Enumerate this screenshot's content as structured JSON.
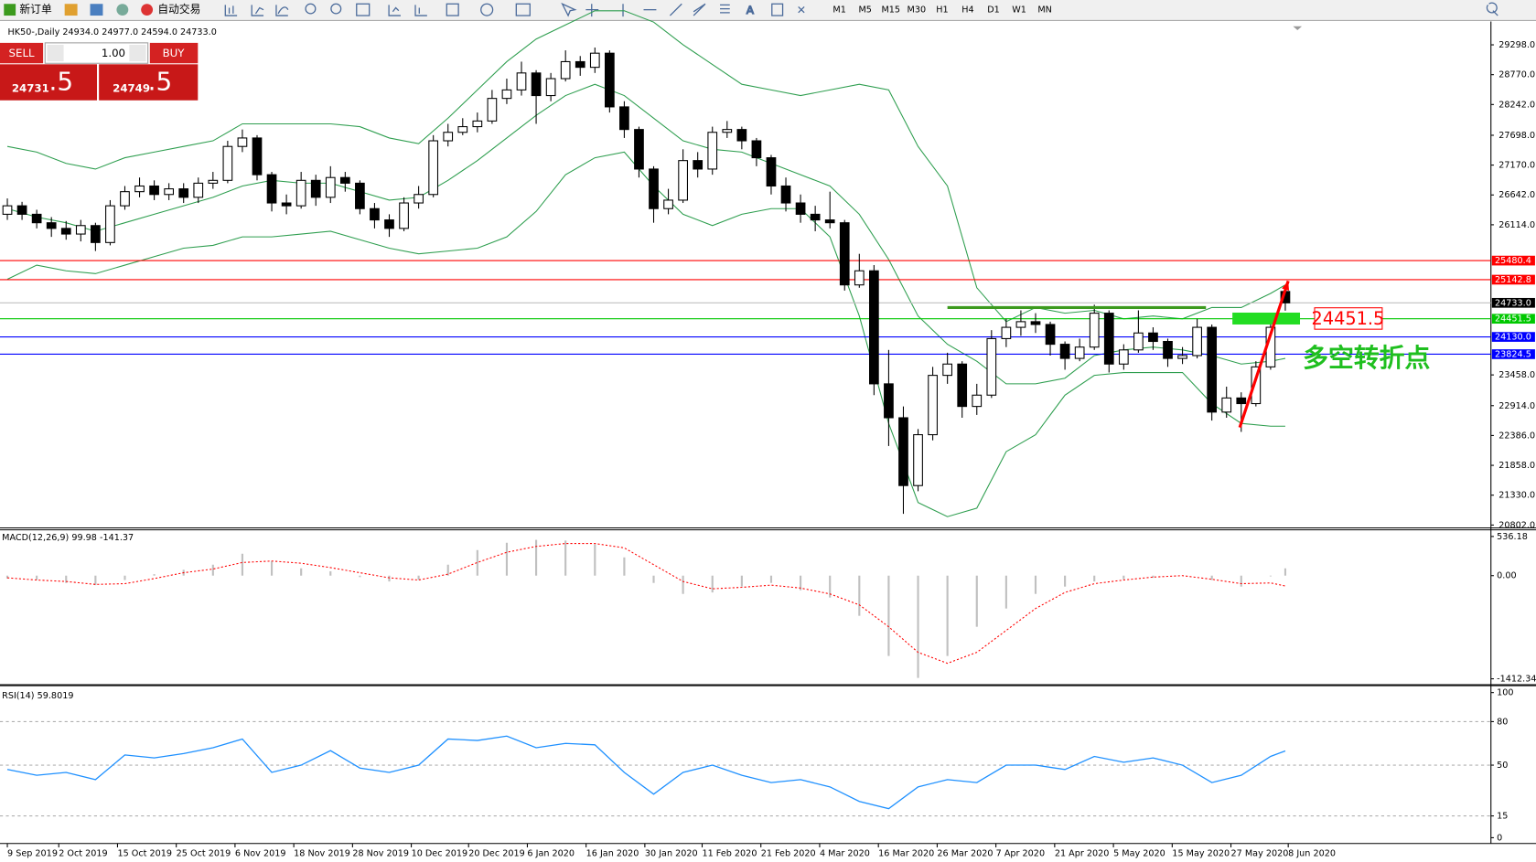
{
  "toolbar": {
    "new_order": "新订单",
    "auto_trade": "自动交易",
    "timeframes": [
      "M1",
      "M5",
      "M15",
      "M30",
      "H1",
      "H4",
      "D1",
      "W1",
      "MN"
    ]
  },
  "trade": {
    "sell": "SELL",
    "buy": "BUY",
    "volume": "1.00",
    "bid_int": "24731",
    "bid_frac": ".5",
    "ask_int": "24749",
    "ask_frac": ".5"
  },
  "chart_data": {
    "type": "candlestick",
    "title": "HK50-,Daily  24934.0 24977.0 24594.0 24733.0",
    "grid": false,
    "xlim": [
      -0.5,
      101
    ],
    "xticks": [
      {
        "value": 0,
        "label": "9 Sep 2019"
      },
      {
        "value": 3.5,
        "label": "2 Oct 2019"
      },
      {
        "value": 7.5,
        "label": "15 Oct 2019"
      },
      {
        "value": 11.5,
        "label": "25 Oct 2019"
      },
      {
        "value": 15.5,
        "label": "6 Nov 2019"
      },
      {
        "value": 19.5,
        "label": "18 Nov 2019"
      },
      {
        "value": 23.5,
        "label": "28 Nov 2019"
      },
      {
        "value": 27.5,
        "label": "10 Dec 2019"
      },
      {
        "value": 31.4,
        "label": "20 Dec 2019"
      },
      {
        "value": 35.4,
        "label": "6 Jan 2020"
      },
      {
        "value": 39.4,
        "label": "16 Jan 2020"
      },
      {
        "value": 43.4,
        "label": "30 Jan 2020"
      },
      {
        "value": 47.3,
        "label": "11 Feb 2020"
      },
      {
        "value": 51.3,
        "label": "21 Feb 2020"
      },
      {
        "value": 55.3,
        "label": "4 Mar 2020"
      },
      {
        "value": 59.3,
        "label": "16 Mar 2020"
      },
      {
        "value": 63.3,
        "label": "26 Mar 2020"
      },
      {
        "value": 67.3,
        "label": "7 Apr 2020"
      },
      {
        "value": 71.3,
        "label": "21 Apr 2020"
      },
      {
        "value": 75.3,
        "label": "5 May 2020"
      },
      {
        "value": 79.3,
        "label": "15 May 2020"
      },
      {
        "value": 83.3,
        "label": "27 May 2020"
      },
      {
        "value": 87.2,
        "label": "8 Jun 2020"
      }
    ],
    "ylim": [
      20768,
      29643
    ],
    "yticks": [
      {
        "value": 20802,
        "label": "20802.0"
      },
      {
        "value": 21330,
        "label": "21330.0"
      },
      {
        "value": 21858,
        "label": "21858.0"
      },
      {
        "value": 22386,
        "label": "22386.0"
      },
      {
        "value": 22914,
        "label": "22914.0"
      },
      {
        "value": 23458,
        "label": "23458.0"
      },
      {
        "value": 26114,
        "label": "26114.0"
      },
      {
        "value": 26642,
        "label": "26642.0"
      },
      {
        "value": 27170,
        "label": "27170.0"
      },
      {
        "value": 27698,
        "label": "27698.0"
      },
      {
        "value": 28242,
        "label": "28242.0"
      },
      {
        "value": 28770,
        "label": "28770.0"
      },
      {
        "value": 29298,
        "label": "29298.0"
      }
    ],
    "up_color": "#ffffff",
    "down_color": "#000000",
    "ohlc": [
      [
        26300,
        26580,
        26200,
        26450
      ],
      [
        26450,
        26520,
        26200,
        26300
      ],
      [
        26300,
        26380,
        26050,
        26150
      ],
      [
        26150,
        26250,
        25900,
        26050
      ],
      [
        26050,
        26180,
        25850,
        25950
      ],
      [
        25950,
        26200,
        25820,
        26100
      ],
      [
        26100,
        26150,
        25650,
        25800
      ],
      [
        25800,
        26550,
        25750,
        26450
      ],
      [
        26450,
        26800,
        26380,
        26700
      ],
      [
        26700,
        26950,
        26600,
        26800
      ],
      [
        26800,
        26900,
        26550,
        26650
      ],
      [
        26650,
        26850,
        26550,
        26750
      ],
      [
        26750,
        26850,
        26500,
        26600
      ],
      [
        26600,
        26950,
        26500,
        26850
      ],
      [
        26850,
        27050,
        26750,
        26900
      ],
      [
        26900,
        27600,
        26850,
        27500
      ],
      [
        27500,
        27800,
        27400,
        27650
      ],
      [
        27650,
        27700,
        26900,
        27000
      ],
      [
        27000,
        27050,
        26350,
        26500
      ],
      [
        26500,
        26650,
        26300,
        26450
      ],
      [
        26450,
        27050,
        26400,
        26900
      ],
      [
        26900,
        27000,
        26450,
        26600
      ],
      [
        26600,
        27150,
        26500,
        26950
      ],
      [
        26950,
        27050,
        26700,
        26850
      ],
      [
        26850,
        26900,
        26300,
        26400
      ],
      [
        26400,
        26500,
        26050,
        26200
      ],
      [
        26200,
        26300,
        25900,
        26050
      ],
      [
        26050,
        26600,
        26000,
        26500
      ],
      [
        26500,
        26800,
        26400,
        26650
      ],
      [
        26650,
        27700,
        26600,
        27600
      ],
      [
        27600,
        27900,
        27500,
        27750
      ],
      [
        27750,
        28000,
        27700,
        27850
      ],
      [
        27850,
        28100,
        27750,
        27950
      ],
      [
        27950,
        28500,
        27900,
        28350
      ],
      [
        28350,
        28700,
        28250,
        28500
      ],
      [
        28500,
        29000,
        28400,
        28800
      ],
      [
        28800,
        28850,
        27900,
        28400
      ],
      [
        28400,
        28800,
        28300,
        28700
      ],
      [
        28700,
        29200,
        28650,
        29000
      ],
      [
        29000,
        29100,
        28750,
        28900
      ],
      [
        28900,
        29250,
        28800,
        29150
      ],
      [
        29150,
        29200,
        28100,
        28200
      ],
      [
        28200,
        28300,
        27650,
        27800
      ],
      [
        27800,
        27850,
        26950,
        27100
      ],
      [
        27100,
        27150,
        26150,
        26400
      ],
      [
        26400,
        26750,
        26300,
        26550
      ],
      [
        26550,
        27450,
        26500,
        27250
      ],
      [
        27250,
        27400,
        26950,
        27100
      ],
      [
        27100,
        27850,
        27000,
        27750
      ],
      [
        27750,
        27950,
        27650,
        27800
      ],
      [
        27800,
        27850,
        27450,
        27600
      ],
      [
        27600,
        27650,
        27150,
        27300
      ],
      [
        27300,
        27350,
        26650,
        26800
      ],
      [
        26800,
        26950,
        26350,
        26500
      ],
      [
        26500,
        26650,
        26150,
        26300
      ],
      [
        26300,
        26450,
        26000,
        26200
      ],
      [
        26200,
        26700,
        26050,
        26150
      ],
      [
        26150,
        26200,
        24950,
        25050
      ],
      [
        25050,
        25600,
        25000,
        25300
      ],
      [
        25300,
        25400,
        23100,
        23300
      ],
      [
        23300,
        23900,
        22200,
        22700
      ],
      [
        22700,
        22900,
        21000,
        21500
      ],
      [
        21500,
        22500,
        21400,
        22400
      ],
      [
        22400,
        23600,
        22300,
        23450
      ],
      [
        23450,
        23850,
        23300,
        23650
      ],
      [
        23650,
        23700,
        22700,
        22900
      ],
      [
        22900,
        23300,
        22750,
        23100
      ],
      [
        23100,
        24250,
        23050,
        24100
      ],
      [
        24100,
        24450,
        23950,
        24300
      ],
      [
        24300,
        24600,
        24150,
        24400
      ],
      [
        24400,
        24550,
        24200,
        24350
      ],
      [
        24350,
        24400,
        23800,
        24000
      ],
      [
        24000,
        24050,
        23550,
        23750
      ],
      [
        23750,
        24100,
        23700,
        23950
      ],
      [
        23950,
        24700,
        23900,
        24550
      ],
      [
        24550,
        24600,
        23500,
        23650
      ],
      [
        23650,
        24000,
        23550,
        23900
      ],
      [
        23900,
        24600,
        23850,
        24200
      ],
      [
        24200,
        24300,
        23900,
        24050
      ],
      [
        24050,
        24100,
        23600,
        23750
      ],
      [
        23750,
        23950,
        23650,
        23800
      ],
      [
        23800,
        24450,
        23750,
        24300
      ],
      [
        24300,
        24350,
        22650,
        22800
      ],
      [
        22800,
        23250,
        22700,
        23050
      ],
      [
        23050,
        23150,
        22450,
        22950
      ],
      [
        22950,
        23700,
        22900,
        23600
      ],
      [
        23600,
        24400,
        23550,
        24300
      ],
      [
        24934,
        24977,
        24594,
        24733
      ]
    ],
    "bands": {
      "color": "#2e9e4f",
      "x": [
        0,
        2,
        4,
        6,
        8,
        10,
        12,
        14,
        16,
        18,
        20,
        22,
        24,
        26,
        28,
        30,
        32,
        34,
        36,
        38,
        40,
        42,
        44,
        46,
        48,
        50,
        52,
        54,
        56,
        58,
        60,
        62,
        64,
        66,
        68,
        70,
        72,
        74,
        76,
        78,
        80,
        82,
        84,
        86,
        87
      ],
      "upper": [
        27500,
        27400,
        27200,
        27100,
        27300,
        27400,
        27500,
        27600,
        27900,
        27900,
        27900,
        27900,
        27850,
        27650,
        27550,
        28000,
        28500,
        29000,
        29400,
        29650,
        29900,
        29900,
        29700,
        29300,
        28950,
        28600,
        28500,
        28400,
        28500,
        28600,
        28500,
        27500,
        26800,
        25000,
        24400,
        24650,
        24550,
        24600,
        24450,
        24500,
        24450,
        24650,
        24650,
        24900,
        25050
      ],
      "middle": [
        26400,
        26250,
        26150,
        26000,
        26150,
        26300,
        26450,
        26600,
        26800,
        26900,
        26850,
        26850,
        26700,
        26550,
        26600,
        26900,
        27250,
        27650,
        28050,
        28400,
        28600,
        28400,
        28000,
        27600,
        27450,
        27400,
        27200,
        27000,
        26800,
        26300,
        25500,
        24500,
        24000,
        23700,
        23300,
        23300,
        23400,
        23800,
        23900,
        23950,
        23900,
        23800,
        23650,
        23700,
        23750
      ],
      "lower": [
        25150,
        25400,
        25300,
        25250,
        25400,
        25550,
        25700,
        25750,
        25900,
        25900,
        25950,
        26000,
        25850,
        25700,
        25600,
        25650,
        25700,
        25900,
        26350,
        27000,
        27300,
        27400,
        26800,
        26300,
        26100,
        26300,
        26400,
        26400,
        25900,
        24500,
        22600,
        21200,
        20950,
        21100,
        22100,
        22400,
        23100,
        23450,
        23500,
        23500,
        23500,
        22950,
        22600,
        22550,
        22550
      ]
    },
    "hlines": [
      {
        "value": 25480.4,
        "color": "#ff0000"
      },
      {
        "value": 25142.8,
        "color": "#ff0000"
      },
      {
        "value": 24733,
        "label": "24733.0",
        "color": "#000000",
        "line_color": "#c0c0c0"
      },
      {
        "value": 24451.5,
        "color": "#00c800"
      },
      {
        "value": 24130,
        "label": "24130.0",
        "color": "#0000ff"
      },
      {
        "value": 23824.5,
        "color": "#0000ff"
      }
    ],
    "drawings": [
      {
        "kind": "segment",
        "x": [
          64,
          81.6
        ],
        "y": [
          24650,
          24650
        ],
        "color": "#3c9a1e"
      },
      {
        "kind": "rect",
        "x": [
          83.4,
          88
        ],
        "y": [
          24560,
          24350
        ],
        "color": "#22dd22"
      },
      {
        "kind": "arrow",
        "x": [
          83.9,
          87.2
        ],
        "y": [
          22528,
          25119
        ],
        "color": "#ff0000"
      }
    ],
    "callout": {
      "text": "24451.5",
      "color": "#ff0000"
    },
    "caption": {
      "text": "多空转折点",
      "color": "#1fbf1f"
    },
    "macd": {
      "title": "MACD(12,26,9) 99.98 -141.37",
      "ylim": [
        -1480,
        600
      ],
      "yticks": [
        536.18,
        {
          "value": 0,
          "label": "0.00"
        },
        -1412.34
      ],
      "hist_color": "#c0c0c0",
      "signal_color": "#ff0000",
      "x": [
        0,
        2,
        4,
        6,
        8,
        10,
        12,
        14,
        16,
        18,
        20,
        22,
        24,
        26,
        28,
        30,
        32,
        34,
        36,
        38,
        40,
        42,
        44,
        46,
        48,
        50,
        52,
        54,
        56,
        58,
        60,
        62,
        64,
        66,
        68,
        70,
        72,
        74,
        76,
        78,
        80,
        82,
        84,
        86,
        87
      ],
      "histogram": [
        -40,
        -60,
        -100,
        -130,
        -60,
        20,
        80,
        150,
        300,
        200,
        100,
        60,
        -20,
        -80,
        -60,
        150,
        350,
        450,
        490,
        480,
        430,
        250,
        -100,
        -250,
        -230,
        -150,
        -100,
        -200,
        -300,
        -550,
        -1100,
        -1400,
        -1100,
        -700,
        -450,
        -250,
        -150,
        -80,
        -50,
        -30,
        0,
        -60,
        -150,
        -10,
        99.98
      ],
      "signal": [
        -30,
        -60,
        -80,
        -120,
        -110,
        -40,
        40,
        90,
        180,
        200,
        170,
        110,
        40,
        -30,
        -60,
        20,
        180,
        320,
        400,
        440,
        440,
        380,
        150,
        -80,
        -180,
        -160,
        -130,
        -170,
        -250,
        -400,
        -700,
        -1050,
        -1200,
        -1050,
        -750,
        -450,
        -230,
        -110,
        -60,
        -20,
        0,
        -50,
        -110,
        -100,
        -141.37
      ]
    },
    "rsi": {
      "title": "RSI(14) 59.8019",
      "ylim": [
        -4,
        103.4
      ],
      "yticks": [
        100,
        80,
        50,
        15,
        0
      ],
      "levels": [
        80,
        50,
        15
      ],
      "color": "#1e90ff",
      "x": [
        0,
        2,
        4,
        6,
        8,
        10,
        12,
        14,
        16,
        18,
        20,
        22,
        24,
        26,
        28,
        30,
        32,
        34,
        36,
        38,
        40,
        42,
        44,
        46,
        48,
        50,
        52,
        54,
        56,
        58,
        60,
        62,
        64,
        66,
        68,
        70,
        72,
        74,
        76,
        78,
        80,
        82,
        84,
        86,
        87
      ],
      "values": [
        47,
        43,
        45,
        40,
        57,
        55,
        58,
        62,
        68,
        45,
        50,
        60,
        48,
        45,
        50,
        68,
        67,
        70,
        62,
        65,
        64,
        45,
        30,
        45,
        50,
        43,
        38,
        40,
        35,
        25,
        20,
        35,
        40,
        38,
        50,
        50,
        47,
        56,
        52,
        55,
        50,
        38,
        43,
        56,
        59.8019
      ]
    }
  }
}
